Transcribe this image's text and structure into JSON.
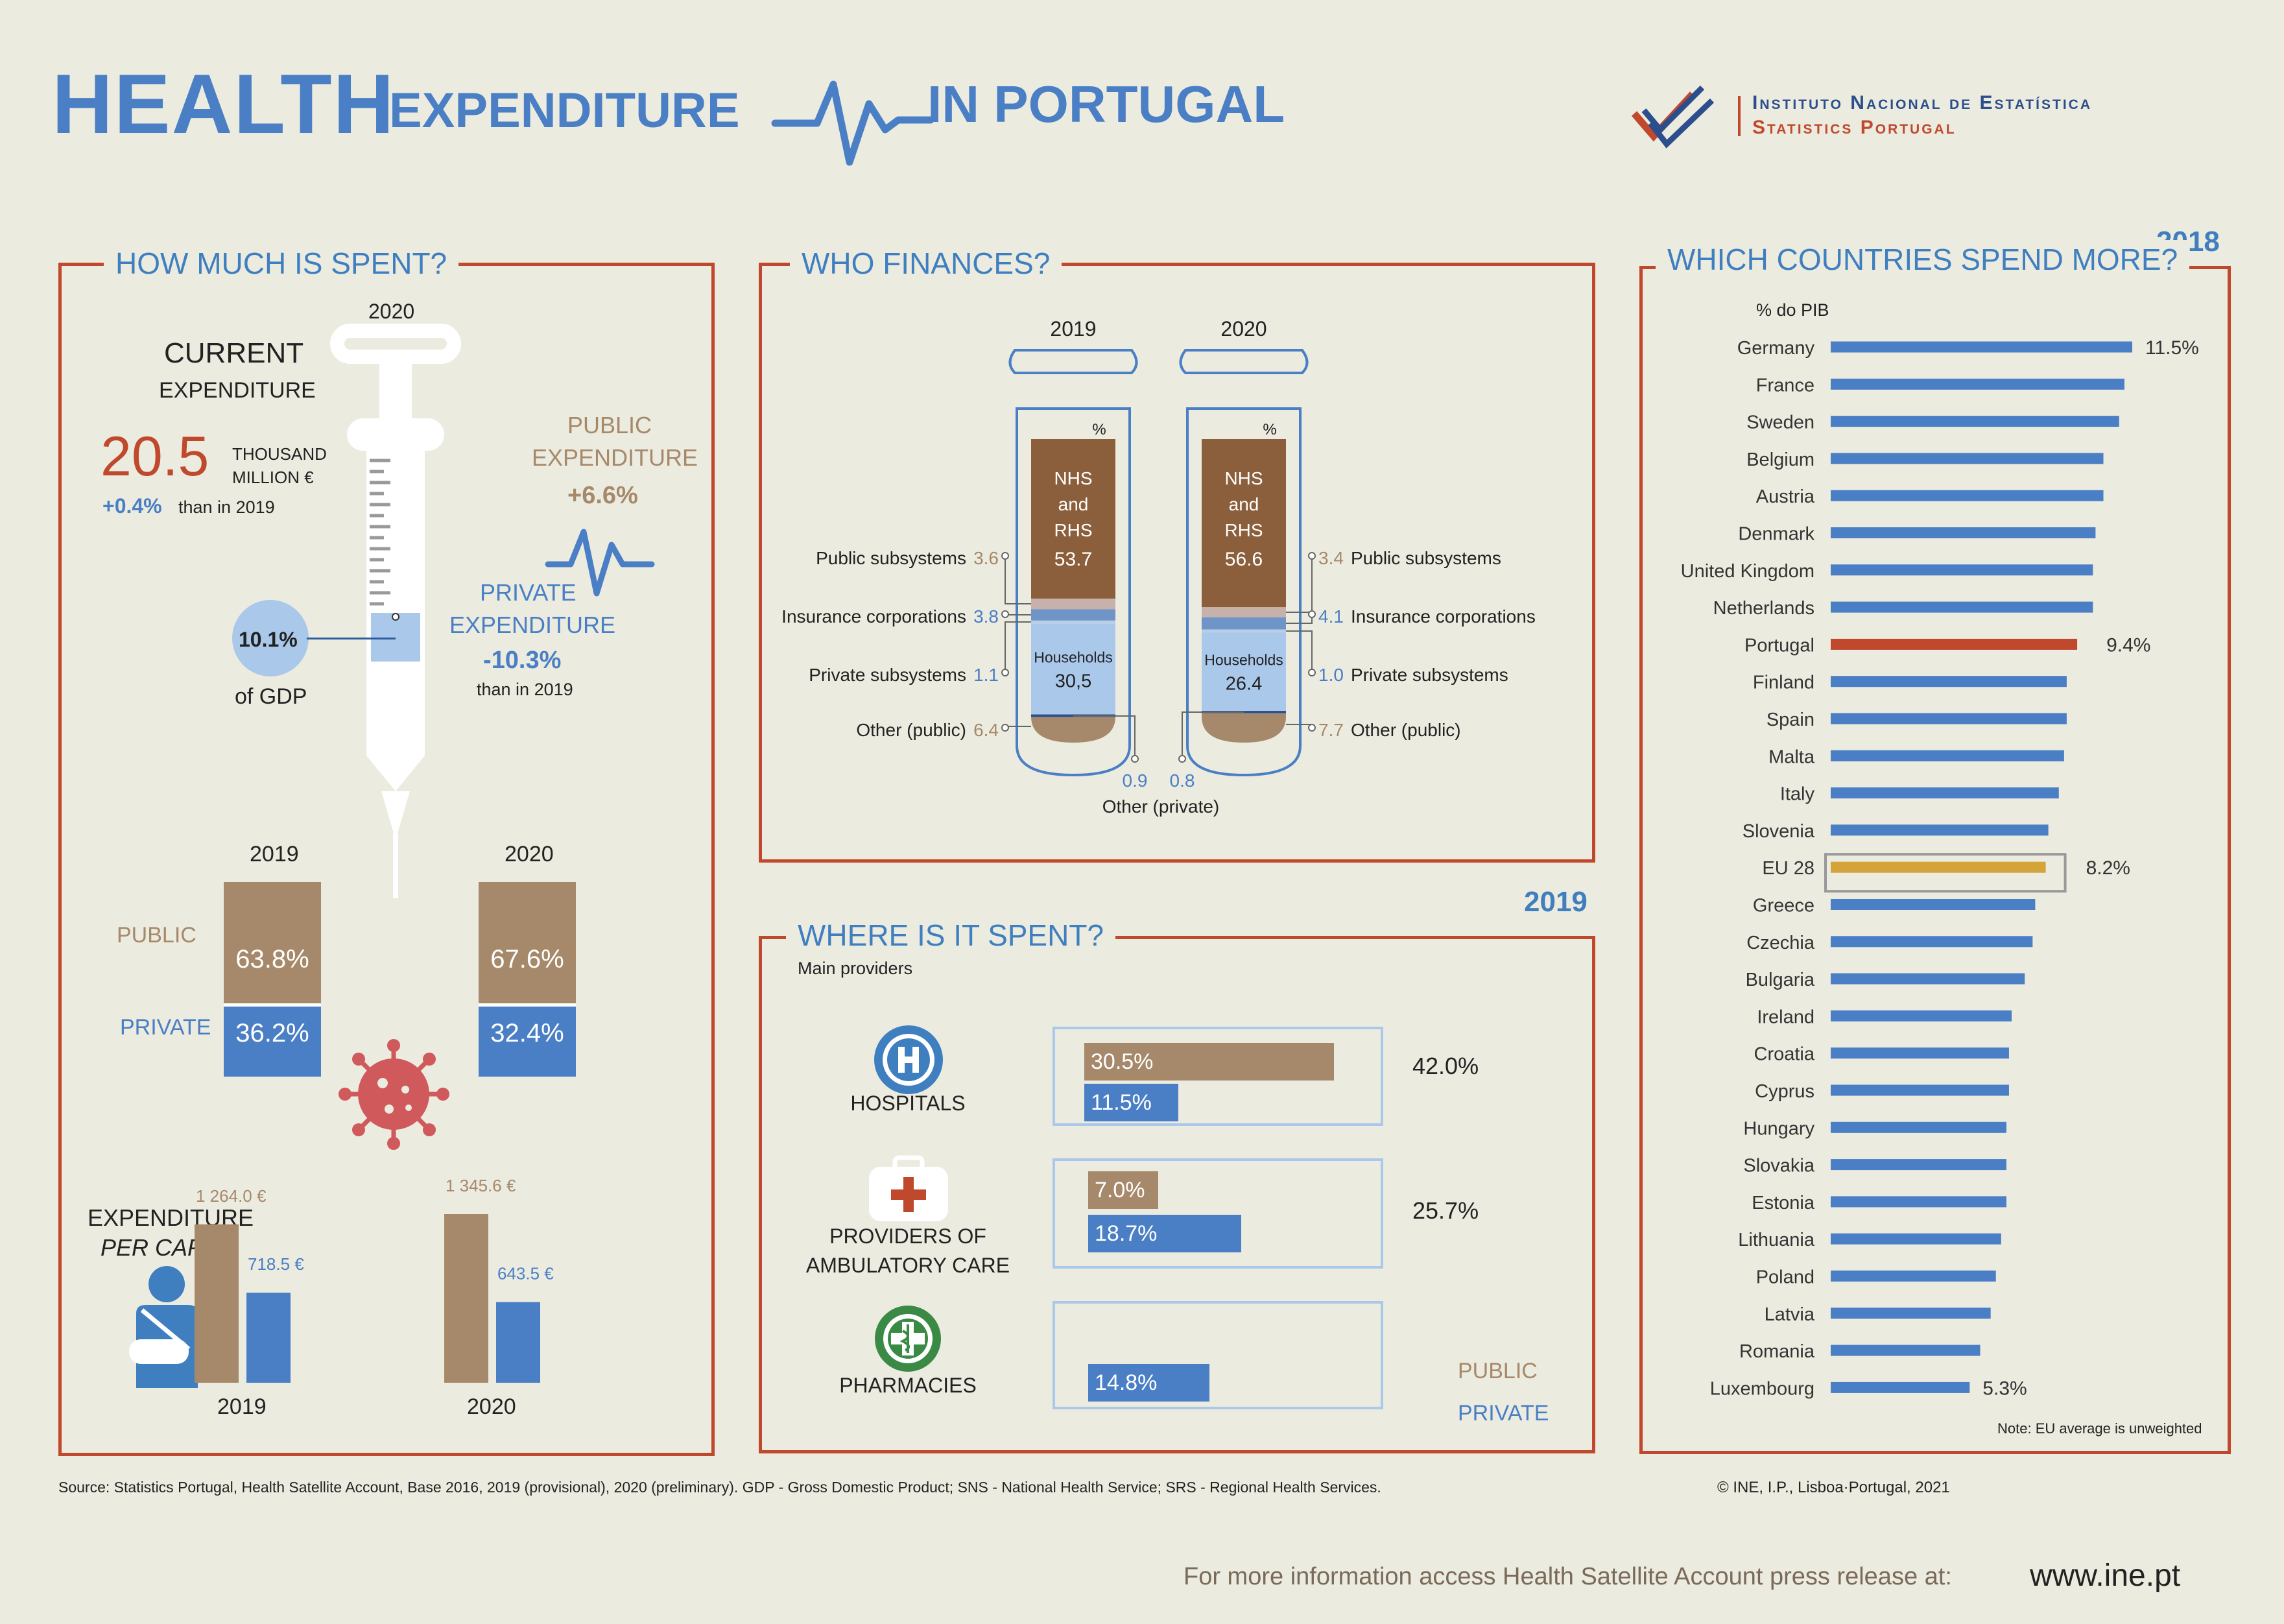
{
  "header": {
    "title_1": "HEALTH",
    "title_2": "EXPENDITURE",
    "title_3": "IN PORTUGAL",
    "org_line1": "Instituto Nacional de Estatística",
    "org_line2": "Statistics Portugal"
  },
  "colors": {
    "public": "#a6896a",
    "private": "#4a7fc5",
    "accent": "#c0492d",
    "portugal": "#c0492d",
    "eu": "#d4a33a",
    "base": "#4a7fc5",
    "nhs": "#8b5f3c",
    "households": "#a9c8ea"
  },
  "spent": {
    "title": "HOW MUCH IS SPENT?",
    "year": "2020",
    "current_label_1": "CURRENT",
    "current_label_2": "EXPENDITURE",
    "amount": "20.5",
    "amount_unit_1": "THOUSAND",
    "amount_unit_2": "MILLION €",
    "change": "+0.4%",
    "change_suffix": "than in 2019",
    "gdp_value": "10.1%",
    "gdp_label": "of GDP",
    "gdp_fill": 0.101,
    "public_label_1": "PUBLIC",
    "public_label_2": "EXPENDITURE",
    "public_change": "+6.6%",
    "private_label_1": "PRIVATE",
    "private_label_2": "EXPENDITURE",
    "private_change": "-10.3%",
    "private_suffix": "than in 2019",
    "capsules": [
      {
        "year": "2019",
        "public": "63.8%",
        "private": "36.2%",
        "public_share": 63.8
      },
      {
        "year": "2020",
        "public": "67.6%",
        "private": "32.4%",
        "public_share": 67.6
      }
    ],
    "public_row": "PUBLIC",
    "private_row": "PRIVATE",
    "percap_label_1": "EXPENDITURE",
    "percap_label_2": "PER CAPITA",
    "percap": [
      {
        "year": "2019",
        "public": 1264.0,
        "private": 718.5,
        "public_label": "1 264.0 €",
        "private_label": "718.5 €"
      },
      {
        "year": "2020",
        "public": 1345.6,
        "private": 643.5,
        "public_label": "1 345.6 €",
        "private_label": "643.5 €"
      }
    ]
  },
  "finances": {
    "title": "WHO FINANCES?",
    "pct": "%",
    "nhs_label_1": "NHS",
    "nhs_label_2": "and",
    "nhs_label_3": "RHS",
    "households_label": "Households",
    "other_private_label": "Other (private)",
    "tubes": [
      {
        "year": "2019",
        "nhs": "53.7",
        "households": "30,5",
        "other_private": "0.9",
        "public_subsystems": "3.6",
        "insurance": "3.8",
        "private_subsystems": "1.1",
        "other_public": "6.4",
        "shares": {
          "nhs": 53.7,
          "public_subsystems": 3.6,
          "insurance": 3.8,
          "private_subsystems": 1.1,
          "households": 30.5,
          "other_private": 0.9,
          "other_public": 6.4
        }
      },
      {
        "year": "2020",
        "nhs": "56.6",
        "households": "26.4",
        "other_private": "0.8",
        "public_subsystems": "3.4",
        "insurance": "4.1",
        "private_subsystems": "1.0",
        "other_public": "7.7",
        "shares": {
          "nhs": 56.6,
          "public_subsystems": 3.4,
          "insurance": 4.1,
          "private_subsystems": 1.0,
          "households": 26.4,
          "other_private": 0.8,
          "other_public": 7.7
        }
      }
    ],
    "labels": {
      "public_subsystems": "Public subsystems",
      "insurance": "Insurance corporations",
      "private_subsystems": "Private subsystems",
      "other_public": "Other (public)"
    }
  },
  "where": {
    "title": "WHERE IS IT SPENT?",
    "year": "2019",
    "subtitle": "Main providers",
    "providers": [
      {
        "name_1": "HOSPITALS",
        "name_2": "",
        "public": 30.5,
        "private": 11.5,
        "public_label": "30.5%",
        "private_label": "11.5%",
        "total": "42.0%",
        "icon": "hospital-icon"
      },
      {
        "name_1": "PROVIDERS OF",
        "name_2": "AMBULATORY CARE",
        "public": 7.0,
        "private": 18.7,
        "public_label": "7.0%",
        "private_label": "18.7%",
        "total": "25.7%",
        "icon": "medical-kit-icon"
      },
      {
        "name_1": "PHARMACIES",
        "name_2": "",
        "public": null,
        "private": 14.8,
        "public_label": "",
        "private_label": "14.8%",
        "total": "",
        "icon": "pharmacy-icon"
      }
    ],
    "legend_public": "PUBLIC",
    "legend_private": "PRIVATE"
  },
  "chart_data": {
    "type": "bar",
    "title": "WHICH COUNTRIES SPEND MORE?",
    "year": "2018",
    "ylabel": "% do PIB",
    "orientation": "horizontal",
    "categories": [
      "Germany",
      "France",
      "Sweden",
      "Belgium",
      "Austria",
      "Denmark",
      "United Kingdom",
      "Netherlands",
      "Portugal",
      "Finland",
      "Spain",
      "Malta",
      "Italy",
      "Slovenia",
      "EU 28",
      "Greece",
      "Czechia",
      "Bulgaria",
      "Ireland",
      "Croatia",
      "Cyprus",
      "Hungary",
      "Slovakia",
      "Estonia",
      "Lithuania",
      "Poland",
      "Latvia",
      "Romania",
      "Luxembourg"
    ],
    "values": [
      11.5,
      11.2,
      11.0,
      10.4,
      10.4,
      10.1,
      10.0,
      10.0,
      9.4,
      9.0,
      9.0,
      8.9,
      8.7,
      8.3,
      8.2,
      7.8,
      7.7,
      7.4,
      6.9,
      6.8,
      6.8,
      6.7,
      6.7,
      6.7,
      6.5,
      6.3,
      6.1,
      5.7,
      5.3
    ],
    "value_labels": [
      "11.5%",
      "",
      "",
      "",
      "",
      "",
      "",
      "",
      "9.4%",
      "",
      "",
      "",
      "",
      "",
      "8.2%",
      "",
      "",
      "",
      "",
      "",
      "",
      "",
      "",
      "",
      "",
      "",
      "",
      "",
      "5.3%"
    ],
    "xlim": [
      0,
      12
    ],
    "note": "Note: EU average is unweighted"
  },
  "footer": {
    "source": "Source: Statistics Portugal, Health Satellite Account, Base 2016, 2019 (provisional), 2020 (preliminary). GDP - Gross Domestic Product; SNS - National Health Service; SRS - Regional Health Services.",
    "copyright": "© INE, I.P., Lisboa·Portugal, 2021",
    "more_info": "For more information access Health Satellite Account press release at:",
    "url": "www.ine.pt"
  }
}
